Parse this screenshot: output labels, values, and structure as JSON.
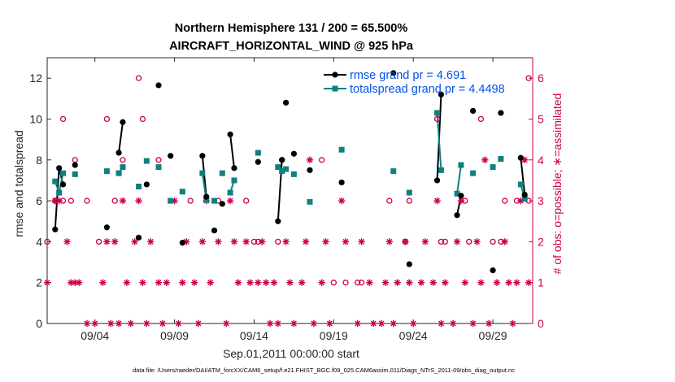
{
  "chart_data": {
    "type": "scatter",
    "title": "Northern Hemisphere 131 / 200 = 65.500%",
    "subtitle": "AIRCRAFT_HORIZONTAL_WIND @ 925 hPa",
    "xlabel": "Sep.01,2011 00:00:00 start",
    "ylabel": "rmse and totalspread",
    "y2label": "# of obs: o=possible; ∗=assimilated",
    "footnote": "data file: /Users/raeder/DAI/ATM_forcXX/CAM6_setup/f.e21.FHIST_BGC.f09_025.CAM6assim.011/Diags_NTrS_2011-09/obs_diag_output.nc",
    "xlim": [
      0,
      30.5
    ],
    "ylim": [
      0,
      13
    ],
    "y2lim": [
      0,
      6.5
    ],
    "xticks": [
      3,
      8,
      13,
      18,
      23,
      28
    ],
    "xtick_labels": [
      "09/04",
      "09/09",
      "09/14",
      "09/19",
      "09/24",
      "09/29"
    ],
    "yticks": [
      0,
      2,
      4,
      6,
      8,
      10,
      12
    ],
    "y2ticks": [
      0,
      1,
      2,
      3,
      4,
      5,
      6
    ],
    "colors": {
      "rmse": "#000000",
      "spread": "#0f8080",
      "obs": "#cc0044",
      "legend_text": "#0052e6"
    },
    "legend": [
      {
        "name": "rmse grand pr = 4.691",
        "color": "#000000"
      },
      {
        "name": "totalspread grand pr = 4.4498",
        "color": "#0f8080"
      }
    ],
    "series": [
      {
        "name": "rmse",
        "color": "#000000",
        "points": [
          [
            0.5,
            4.6
          ],
          [
            0.75,
            7.6
          ],
          [
            1,
            6.8
          ],
          [
            1.75,
            7.75
          ],
          [
            3.75,
            4.7
          ],
          [
            4.5,
            8.35
          ],
          [
            4.75,
            9.85
          ],
          [
            5.75,
            4.2
          ],
          [
            6.25,
            6.8
          ],
          [
            7,
            11.65
          ],
          [
            7.75,
            8.2
          ],
          [
            8.5,
            3.95
          ],
          [
            9.75,
            8.2
          ],
          [
            10,
            6.2
          ],
          [
            10.5,
            4.55
          ],
          [
            11,
            5.85
          ],
          [
            11.5,
            9.25
          ],
          [
            11.75,
            7.6
          ],
          [
            13.25,
            7.9
          ],
          [
            14.5,
            5.0
          ],
          [
            14.75,
            8.0
          ],
          [
            15,
            10.8
          ],
          [
            15.5,
            8.3
          ],
          [
            16.5,
            7.5
          ],
          [
            18.5,
            6.9
          ],
          [
            21.75,
            12.25
          ],
          [
            22.75,
            2.9
          ],
          [
            24.5,
            7.0
          ],
          [
            24.75,
            11.2
          ],
          [
            25.75,
            5.3
          ],
          [
            26,
            6.25
          ],
          [
            26.75,
            10.4
          ],
          [
            28,
            2.6
          ],
          [
            28.5,
            10.3
          ],
          [
            29.75,
            8.1
          ],
          [
            30,
            6.3
          ]
        ]
      },
      {
        "name": "totalspread",
        "color": "#0f8080",
        "points": [
          [
            0.5,
            6.95
          ],
          [
            0.75,
            6.4
          ],
          [
            1,
            7.35
          ],
          [
            1.75,
            7.3
          ],
          [
            3.75,
            7.45
          ],
          [
            4.5,
            7.35
          ],
          [
            4.75,
            7.65
          ],
          [
            5.75,
            6.7
          ],
          [
            6.25,
            7.95
          ],
          [
            7,
            7.65
          ],
          [
            7.75,
            6.0
          ],
          [
            8.5,
            6.45
          ],
          [
            9.75,
            7.35
          ],
          [
            10,
            6.05
          ],
          [
            10.5,
            6.0
          ],
          [
            11,
            7.35
          ],
          [
            11.5,
            6.4
          ],
          [
            11.75,
            7.0
          ],
          [
            13.25,
            8.35
          ],
          [
            14.5,
            7.65
          ],
          [
            14.75,
            7.45
          ],
          [
            15,
            7.55
          ],
          [
            15.5,
            7.3
          ],
          [
            16.5,
            5.95
          ],
          [
            18.5,
            8.5
          ],
          [
            21.75,
            7.45
          ],
          [
            22.75,
            6.4
          ],
          [
            24.5,
            10.3
          ],
          [
            24.75,
            7.5
          ],
          [
            25.75,
            6.35
          ],
          [
            26,
            7.75
          ],
          [
            26.75,
            7.35
          ],
          [
            28,
            7.65
          ],
          [
            28.5,
            8.05
          ],
          [
            29.75,
            6.8
          ],
          [
            30,
            6.1
          ]
        ]
      }
    ],
    "segments_rmse": [
      [
        [
          0.5,
          4.6
        ],
        [
          0.75,
          7.6
        ],
        [
          1,
          6.8
        ]
      ],
      [
        [
          4.5,
          8.35
        ],
        [
          4.75,
          9.85
        ]
      ],
      [
        [
          9.75,
          8.2
        ],
        [
          10,
          6.2
        ]
      ],
      [
        [
          11.5,
          9.25
        ],
        [
          11.75,
          7.6
        ]
      ],
      [
        [
          14.5,
          5.0
        ],
        [
          14.75,
          8.0
        ]
      ],
      [
        [
          24.5,
          7.0
        ],
        [
          24.75,
          11.2
        ]
      ],
      [
        [
          25.75,
          5.3
        ],
        [
          26,
          6.25
        ]
      ],
      [
        [
          29.75,
          8.1
        ],
        [
          30,
          6.3
        ]
      ]
    ],
    "segments_spread": [
      [
        [
          0.5,
          6.95
        ],
        [
          0.75,
          6.4
        ],
        [
          1,
          7.35
        ]
      ],
      [
        [
          4.5,
          7.35
        ],
        [
          4.75,
          7.65
        ]
      ],
      [
        [
          9.75,
          7.35
        ],
        [
          10,
          6.05
        ]
      ],
      [
        [
          11.5,
          6.4
        ],
        [
          11.75,
          7.0
        ]
      ],
      [
        [
          14.5,
          7.65
        ],
        [
          14.75,
          7.45
        ]
      ],
      [
        [
          24.5,
          10.3
        ],
        [
          24.75,
          7.5
        ]
      ],
      [
        [
          25.75,
          6.35
        ],
        [
          26,
          7.75
        ]
      ],
      [
        [
          29.75,
          6.8
        ],
        [
          30,
          6.1
        ]
      ]
    ],
    "obs_possible": [
      [
        0,
        2
      ],
      [
        0.5,
        3
      ],
      [
        1,
        5
      ],
      [
        1,
        3
      ],
      [
        1.5,
        3
      ],
      [
        1.75,
        4
      ],
      [
        2.5,
        3
      ],
      [
        3.25,
        2
      ],
      [
        3.75,
        5
      ],
      [
        4.25,
        3
      ],
      [
        4.75,
        4
      ],
      [
        5.75,
        6
      ],
      [
        6,
        5
      ],
      [
        7,
        4
      ],
      [
        9,
        3
      ],
      [
        10.75,
        3
      ],
      [
        12.5,
        3
      ],
      [
        13,
        2
      ],
      [
        13.25,
        2
      ],
      [
        14.5,
        2
      ],
      [
        14.75,
        4
      ],
      [
        17.25,
        4
      ],
      [
        18,
        1
      ],
      [
        18.75,
        1
      ],
      [
        19.5,
        1
      ],
      [
        19.75,
        1
      ],
      [
        21.5,
        3
      ],
      [
        22.5,
        2
      ],
      [
        22.75,
        3
      ],
      [
        24.5,
        5
      ],
      [
        24.75,
        2
      ],
      [
        25,
        2
      ],
      [
        26.25,
        3
      ],
      [
        26.5,
        2
      ],
      [
        27.25,
        5
      ],
      [
        28,
        2
      ],
      [
        28.5,
        2
      ],
      [
        28.75,
        3
      ],
      [
        29.5,
        3
      ],
      [
        30.25,
        6
      ],
      [
        30.25,
        3
      ]
    ],
    "obs_assimilated": [
      [
        0,
        1
      ],
      [
        0.5,
        3
      ],
      [
        0.75,
        3
      ],
      [
        1.25,
        2
      ],
      [
        1.5,
        1
      ],
      [
        1.75,
        1
      ],
      [
        2,
        1
      ],
      [
        2.5,
        0
      ],
      [
        3,
        0
      ],
      [
        3.5,
        1
      ],
      [
        3.75,
        2
      ],
      [
        4,
        0
      ],
      [
        4.25,
        2
      ],
      [
        4.5,
        0
      ],
      [
        4.75,
        3
      ],
      [
        5,
        1
      ],
      [
        5.25,
        0
      ],
      [
        5.5,
        2
      ],
      [
        5.75,
        3
      ],
      [
        6,
        1
      ],
      [
        6.25,
        0
      ],
      [
        6.5,
        2
      ],
      [
        7,
        1
      ],
      [
        7.25,
        0
      ],
      [
        7.5,
        1
      ],
      [
        8,
        3
      ],
      [
        8.25,
        0
      ],
      [
        8.5,
        1
      ],
      [
        8.75,
        2
      ],
      [
        9.25,
        1
      ],
      [
        9.5,
        0
      ],
      [
        9.75,
        2
      ],
      [
        10,
        3
      ],
      [
        10.25,
        1
      ],
      [
        10.75,
        2
      ],
      [
        11.25,
        0
      ],
      [
        11.5,
        3
      ],
      [
        11.75,
        2
      ],
      [
        12,
        1
      ],
      [
        12.5,
        2
      ],
      [
        12.75,
        1
      ],
      [
        13.25,
        1
      ],
      [
        13.5,
        2
      ],
      [
        13.75,
        1
      ],
      [
        14,
        0
      ],
      [
        14.25,
        1
      ],
      [
        14.5,
        0
      ],
      [
        15,
        2
      ],
      [
        15.25,
        1
      ],
      [
        15.5,
        0
      ],
      [
        16,
        1
      ],
      [
        16.25,
        2
      ],
      [
        16.5,
        4
      ],
      [
        16.75,
        0
      ],
      [
        17.25,
        1
      ],
      [
        17.5,
        2
      ],
      [
        17.75,
        0
      ],
      [
        18.5,
        3
      ],
      [
        18.75,
        2
      ],
      [
        19.5,
        0
      ],
      [
        19.75,
        2
      ],
      [
        20.25,
        1
      ],
      [
        20.5,
        0
      ],
      [
        21,
        0
      ],
      [
        21.25,
        1
      ],
      [
        21.5,
        2
      ],
      [
        21.75,
        0
      ],
      [
        22,
        1
      ],
      [
        22.5,
        2
      ],
      [
        22.75,
        1
      ],
      [
        23,
        0
      ],
      [
        23.5,
        1
      ],
      [
        23.75,
        2
      ],
      [
        24.25,
        1
      ],
      [
        24.5,
        3
      ],
      [
        24.75,
        0
      ],
      [
        25,
        1
      ],
      [
        25.5,
        0
      ],
      [
        25.75,
        2
      ],
      [
        26,
        3
      ],
      [
        26.25,
        1
      ],
      [
        26.75,
        0
      ],
      [
        27,
        2
      ],
      [
        27.25,
        1
      ],
      [
        27.5,
        4
      ],
      [
        27.75,
        0
      ],
      [
        28.25,
        1
      ],
      [
        28.75,
        2
      ],
      [
        29,
        1
      ],
      [
        29.25,
        0
      ],
      [
        29.5,
        1
      ],
      [
        29.75,
        3
      ],
      [
        30,
        4
      ],
      [
        30.25,
        1
      ]
    ]
  }
}
